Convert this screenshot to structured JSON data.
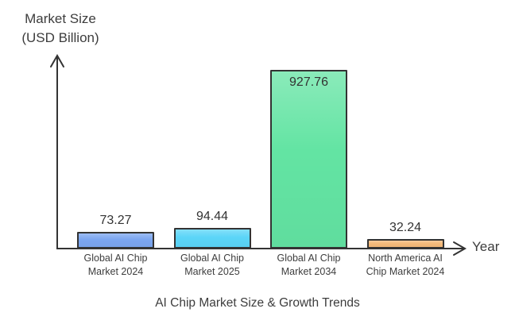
{
  "chart_data": {
    "type": "bar",
    "title": "AI Chip Market Size & Growth Trends",
    "y_axis_label": [
      "Market Size",
      "(USD Billion)"
    ],
    "x_axis_label": "Year",
    "categories": [
      "Global AI Chip Market 2024",
      "Global AI Chip Market 2025",
      "Global AI Chip Market 2034",
      "North America AI Chip Market 2024"
    ],
    "category_lines": [
      [
        "Global AI Chip",
        "Market 2024"
      ],
      [
        "Global AI Chip",
        "Market 2025"
      ],
      [
        "Global AI Chip",
        "Market 2034"
      ],
      [
        "North America AI",
        "Chip Market 2024"
      ]
    ],
    "values": [
      73.27,
      94.44,
      927.76,
      32.24
    ],
    "value_labels": [
      "73.27",
      "94.44",
      "927.76",
      "32.24"
    ],
    "bar_colors": [
      "#7BA6F0",
      "#5BD5F8",
      "#63E4A3",
      "#F4B97A"
    ],
    "bar_border_color": "#333333",
    "axis_color": "#333333",
    "text_color": "#3d3d3d",
    "ylim": [
      0,
      960
    ],
    "grid": false,
    "legend": null
  }
}
